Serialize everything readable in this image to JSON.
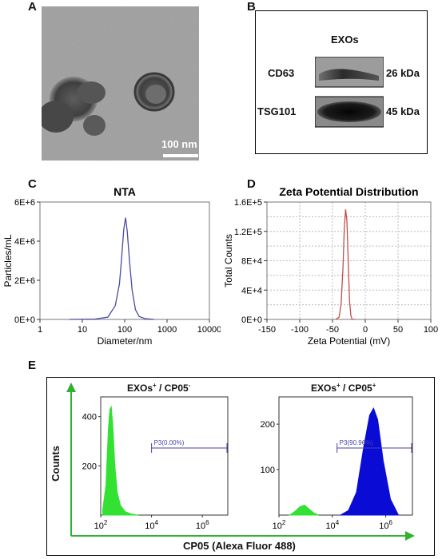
{
  "panels": {
    "a": {
      "label": "A",
      "scalebar": "100 nm"
    },
    "b": {
      "label": "B",
      "title": "EXOs",
      "bands": [
        {
          "name": "CD63",
          "size": "26 kDa"
        },
        {
          "name": "TSG101",
          "size": "45 kDa"
        }
      ]
    },
    "c": {
      "label": "C"
    },
    "d": {
      "label": "D"
    },
    "e": {
      "label": "E",
      "left_title_main": "EXOs",
      "left_title_sup": "+",
      "left_title_mid": " / CP05",
      "left_title_sup2": "-",
      "right_title_main": "EXOs",
      "right_title_sup": "+",
      "right_title_mid": " / CP05",
      "right_title_sup2": "+",
      "gate_left": "P3(0.00%)",
      "gate_right": "P3(90.96%)",
      "ylabel": "Counts",
      "xlabel": "CP05 (Alexa Fluor 488)"
    }
  },
  "chart_data": [
    {
      "type": "line",
      "title": "NTA",
      "xlabel": "Diameter/nm",
      "ylabel": "Particles/mL",
      "x_scale": "log",
      "xlim": [
        1,
        10000
      ],
      "ylim": [
        0,
        6000000
      ],
      "x_ticks": [
        "1",
        "10",
        "100",
        "1000",
        "10000"
      ],
      "y_ticks": [
        "0E+0",
        "2E+6",
        "4E+6",
        "6E+6"
      ],
      "grid": false,
      "color": "#4a4aa8",
      "series": [
        {
          "x": [
            5,
            20,
            40,
            60,
            75,
            85,
            95,
            105,
            115,
            130,
            150,
            180,
            220,
            300,
            500
          ],
          "values": [
            0,
            20000,
            120000,
            700000,
            1800000,
            3200000,
            4600000,
            5200000,
            4500000,
            3000000,
            1500000,
            500000,
            150000,
            40000,
            0
          ]
        }
      ]
    },
    {
      "type": "line",
      "title": "Zeta Potential Distribution",
      "xlabel": "Zeta Potential (mV)",
      "ylabel": "Total Counts",
      "xlim": [
        -150,
        100
      ],
      "ylim": [
        0,
        160000
      ],
      "x_ticks": [
        "-150",
        "-100",
        "-50",
        "0",
        "50",
        "100"
      ],
      "y_ticks": [
        "0E+0",
        "4E+4",
        "8E+4",
        "1.2E+5",
        "1.6E+5"
      ],
      "grid": true,
      "color": "#c0504d",
      "series": [
        {
          "x": [
            -45,
            -40,
            -37,
            -34,
            -32,
            -30,
            -28,
            -26,
            -24,
            -22,
            -20,
            -15
          ],
          "values": [
            0,
            3000,
            20000,
            70000,
            125000,
            150000,
            135000,
            80000,
            25000,
            5000,
            0,
            0
          ]
        }
      ]
    },
    {
      "type": "area",
      "title": "EXOs+ / CP05-",
      "x_scale": "log",
      "xlim": [
        100,
        10000000
      ],
      "ylim": [
        0,
        480
      ],
      "x_ticks": [
        "10^2",
        "10^4",
        "10^6"
      ],
      "y_ticks": [
        "200",
        "400"
      ],
      "color": "#33e133",
      "gate": {
        "label": "P3(0.00%)",
        "x_range": [
          10000,
          10000000
        ]
      },
      "series": [
        {
          "x": [
            120,
            160,
            200,
            230,
            260,
            300,
            360,
            450,
            600,
            900,
            1500,
            3000
          ],
          "values": [
            20,
            120,
            350,
            430,
            440,
            360,
            200,
            90,
            40,
            15,
            5,
            0
          ]
        }
      ]
    },
    {
      "type": "area",
      "title": "EXOs+ / CP05+",
      "x_scale": "log",
      "xlim": [
        100,
        10000000
      ],
      "ylim": [
        0,
        260
      ],
      "x_ticks": [
        "10^2",
        "10^4",
        "10^6"
      ],
      "y_ticks": [
        "100",
        "200"
      ],
      "color": "#0b0bd6",
      "secondary_color": "#33e133",
      "gate": {
        "label": "P3(90.96%)",
        "x_range": [
          15000,
          10000000
        ]
      },
      "series": [
        {
          "name": "negative",
          "x": [
            250,
            400,
            600,
            900,
            1300,
            2000,
            3000
          ],
          "values": [
            0,
            8,
            18,
            22,
            14,
            5,
            0
          ]
        },
        {
          "name": "positive",
          "x": [
            20000,
            40000,
            80000,
            150000,
            250000,
            350000,
            500000,
            800000,
            1500000,
            3000000
          ],
          "values": [
            0,
            10,
            50,
            150,
            220,
            235,
            210,
            120,
            35,
            0
          ]
        }
      ]
    }
  ]
}
